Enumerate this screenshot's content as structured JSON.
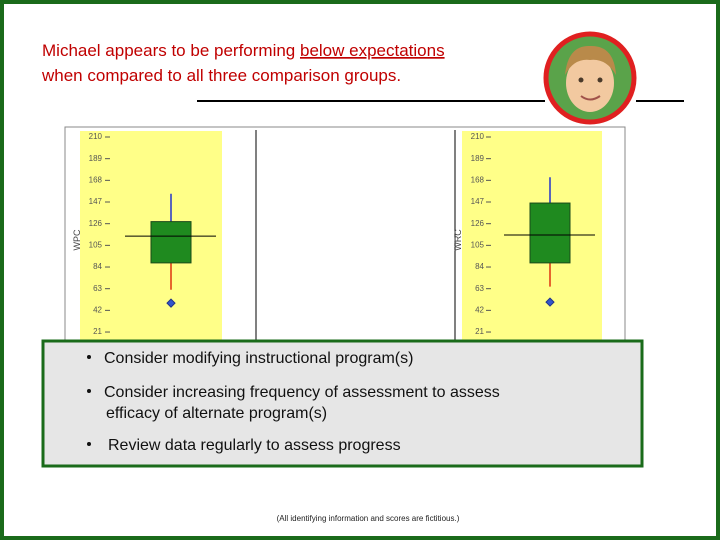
{
  "header": {
    "title_part1": "Michael appears to be performing ",
    "title_emphasis": "below expectations",
    "title_line2": "when compared to all three comparison groups."
  },
  "chart_data": [
    {
      "type": "box",
      "y_label": "WPC",
      "ylim": [
        0,
        210
      ],
      "yticks": [
        21,
        42,
        63,
        84,
        105,
        126,
        147,
        168,
        189,
        210
      ],
      "whisker_low": 62,
      "q1": 88,
      "median": 114,
      "q3": 128,
      "whisker_high": 155,
      "outliers": [
        49
      ],
      "box_color": "#1f8a1f",
      "upper_whisker_color": "#2233cc",
      "lower_whisker_color": "#dd3311",
      "outlier_color": "#3355cc",
      "panel_color": "#ffff88"
    },
    {
      "type": "box",
      "y_label": "WRC",
      "ylim": [
        0,
        210
      ],
      "yticks": [
        21,
        42,
        63,
        84,
        105,
        126,
        147,
        168,
        189,
        210
      ],
      "whisker_low": 65,
      "q1": 88,
      "median": 115,
      "q3": 146,
      "whisker_high": 171,
      "outliers": [
        50
      ],
      "box_color": "#1f8a1f",
      "upper_whisker_color": "#2233cc",
      "lower_whisker_color": "#dd3311",
      "outlier_color": "#3355cc",
      "panel_color": "#ffff88"
    }
  ],
  "bullets": [
    "Consider modifying instructional program(s)",
    "Consider increasing frequency of assessment to assess",
    "efficacy of alternate program(s)",
    "Review data regularly to assess progress"
  ],
  "footnote": "(All identifying information and scores are fictitious.)"
}
